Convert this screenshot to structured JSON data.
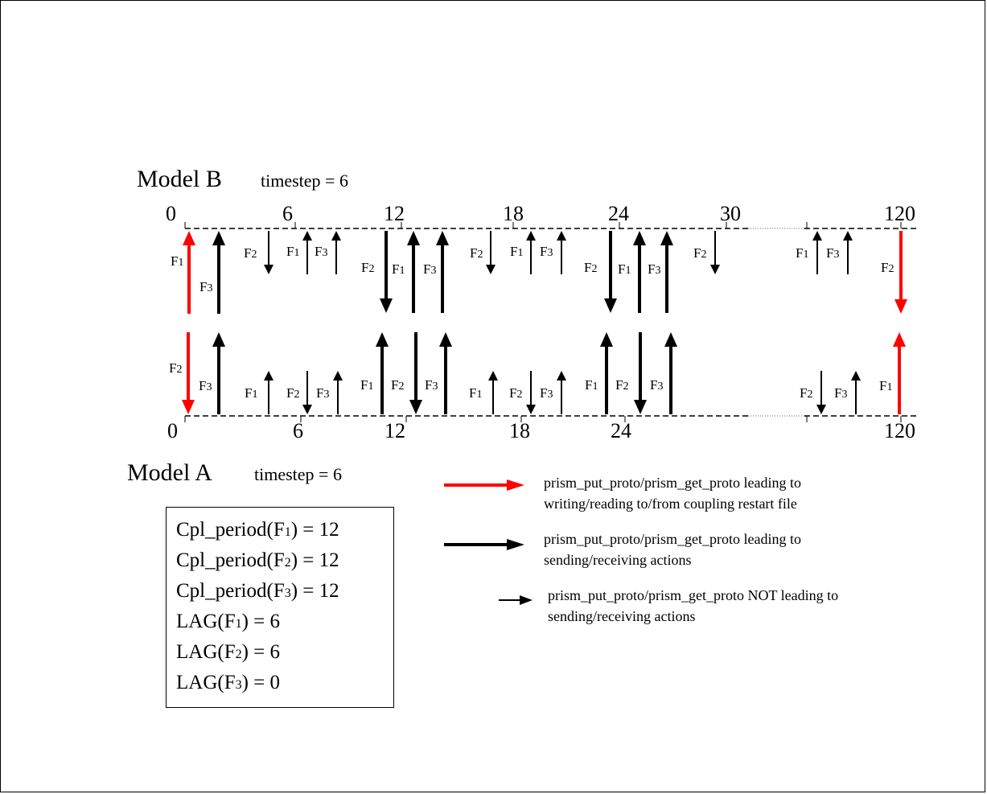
{
  "model_b": {
    "name": "Model B",
    "timestep_label": "timestep = 6"
  },
  "model_a": {
    "name": "Model A",
    "timestep_label": "timestep = 6"
  },
  "ticks": {
    "b": [
      "0",
      "6",
      "12",
      "18",
      "24",
      "30",
      "120"
    ],
    "a": [
      "0",
      "6",
      "12",
      "18",
      "24",
      "120"
    ]
  },
  "field_labels": {
    "f1": "F1",
    "f2": "F2",
    "f3": "F3"
  },
  "params": {
    "cpl_f1": {
      "prefix": "Cpl_period(F",
      "sub": "1",
      "suffix": ") = 12"
    },
    "cpl_f2": {
      "prefix": "Cpl_period(F",
      "sub": "2",
      "suffix": ") = 12"
    },
    "cpl_f3": {
      "prefix": "Cpl_period(F",
      "sub": "3",
      "suffix": ") = 12"
    },
    "lag_f1": {
      "prefix": "LAG(F",
      "sub": "1",
      "suffix": ") = 6"
    },
    "lag_f2": {
      "prefix": "LAG(F",
      "sub": "2",
      "suffix": ") = 6"
    },
    "lag_f3": {
      "prefix": "LAG(F",
      "sub": "3",
      "suffix": ") = 0"
    }
  },
  "legend": {
    "red": {
      "color": "#ff0000",
      "line1": "prism_put_proto/prism_get_proto leading to",
      "line2": "writing/reading to/from coupling restart file"
    },
    "bold": {
      "color": "#000000",
      "line1": "prism_put_proto/prism_get_proto leading to",
      "line2": "sending/receiving actions"
    },
    "thin": {
      "color": "#000000",
      "line1": "prism_put_proto/prism_get_proto NOT leading to",
      "line2": "sending/receiving actions"
    }
  }
}
